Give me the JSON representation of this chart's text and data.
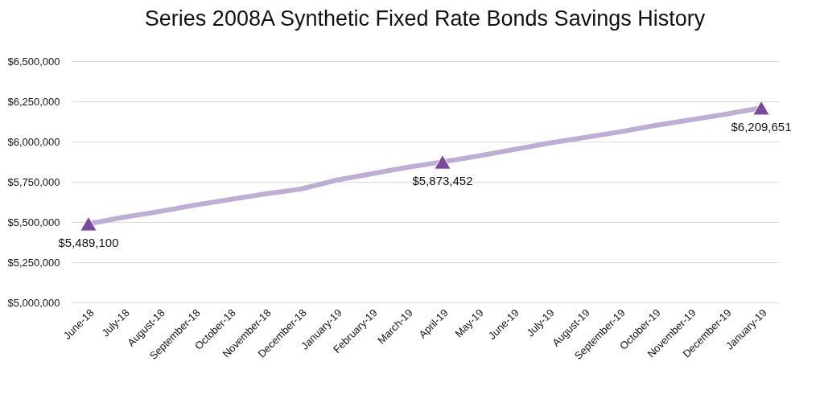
{
  "chart_data": {
    "type": "line",
    "title": "Series 2008A Synthetic Fixed Rate Bonds Savings History",
    "categories": [
      "June-18",
      "July-18",
      "August-18",
      "September-18",
      "October-18",
      "November-18",
      "December-18",
      "January-19",
      "February-19",
      "March-19",
      "April-19",
      "May-19",
      "June-19",
      "July-19",
      "August-19",
      "September-19",
      "October-19",
      "November-19",
      "December-19",
      "January-19"
    ],
    "series": [
      {
        "color": "#bfaed3",
        "marker": "none",
        "line_style": "solid",
        "values": [
          5489100,
          5530000,
          5565000,
          5605000,
          5640000,
          5675000,
          5705000,
          5760000,
          5800000,
          5840000,
          5873452,
          5910000,
          5950000,
          5990000,
          6025000,
          6060000,
          6100000,
          6135000,
          6170000,
          6209651
        ]
      },
      {
        "type": "scatter",
        "color": "#7b4a9c",
        "marker": "triangle",
        "values": [
          5489100,
          null,
          null,
          null,
          null,
          null,
          null,
          null,
          null,
          null,
          5873452,
          null,
          null,
          null,
          null,
          null,
          null,
          null,
          null,
          6209651
        ],
        "value_labels": [
          "$5,489,100",
          null,
          null,
          null,
          null,
          null,
          null,
          null,
          null,
          null,
          "$5,873,452",
          null,
          null,
          null,
          null,
          null,
          null,
          null,
          null,
          "$6,209,651"
        ]
      }
    ],
    "ylim": [
      5000000,
      6500000
    ],
    "yticks": [
      {
        "value": 5000000,
        "label": "$5,000,000"
      },
      {
        "value": 5250000,
        "label": "$5,250,000"
      },
      {
        "value": 5500000,
        "label": "$5,500,000"
      },
      {
        "value": 5750000,
        "label": "$5,750,000"
      },
      {
        "value": 6000000,
        "label": "$6,000,000"
      },
      {
        "value": 6250000,
        "label": "$6,250,000"
      },
      {
        "value": 6500000,
        "label": "$6,500,000"
      }
    ],
    "grid": "y"
  }
}
